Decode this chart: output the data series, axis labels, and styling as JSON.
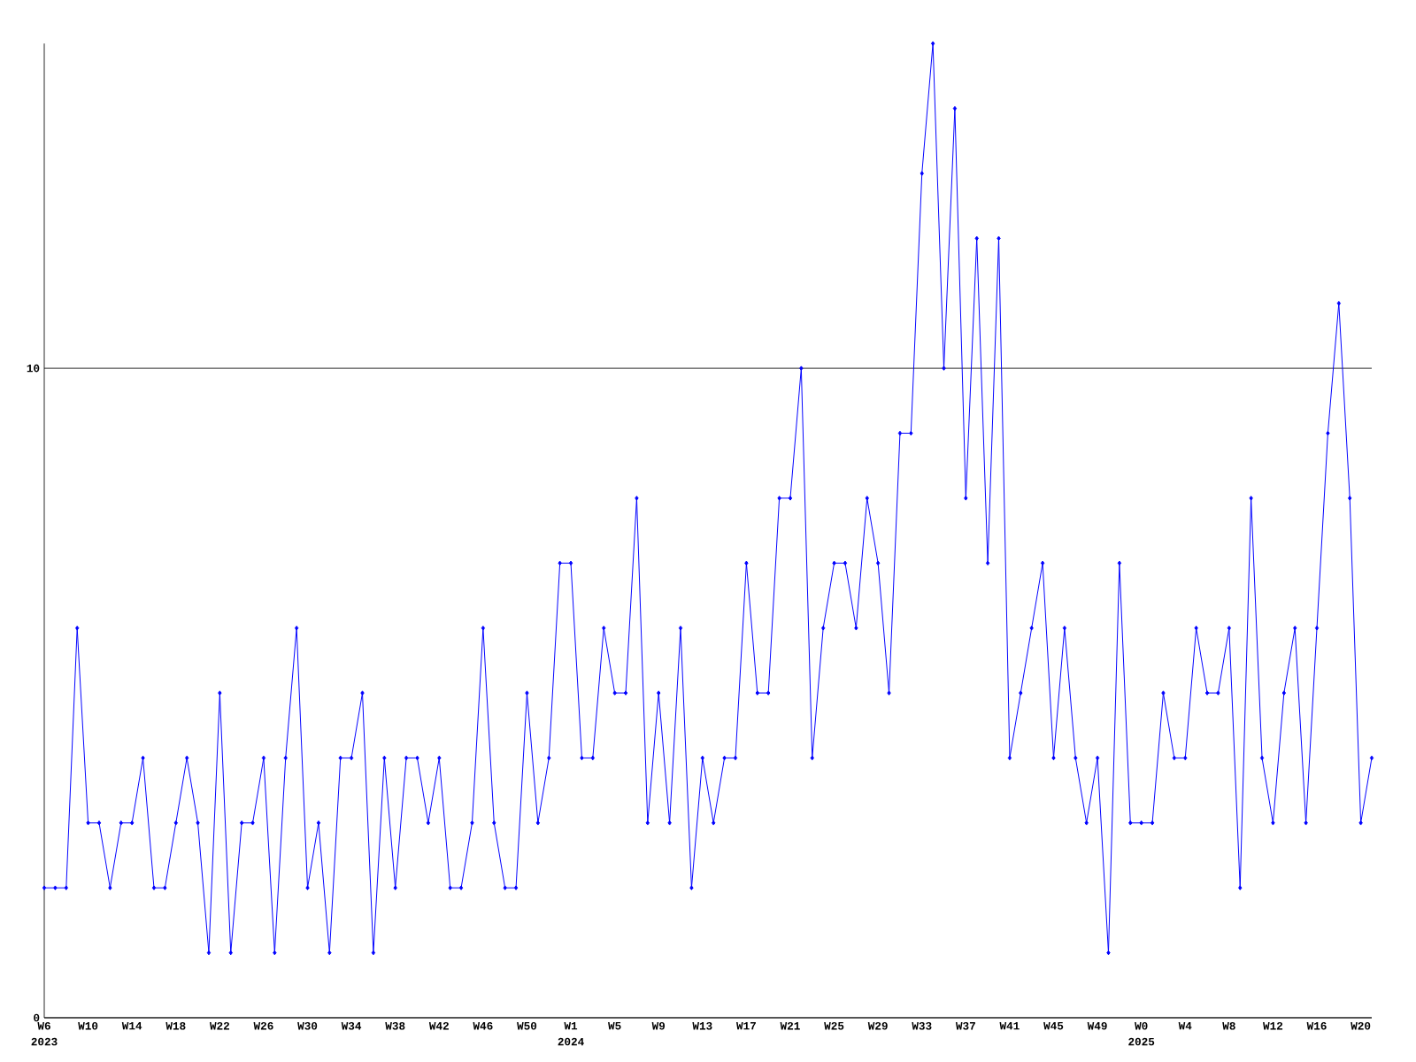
{
  "chart_data": {
    "type": "line",
    "categories": [
      "W6",
      null,
      null,
      null,
      "W10",
      null,
      null,
      null,
      "W14",
      null,
      null,
      null,
      "W18",
      null,
      null,
      null,
      "W22",
      null,
      null,
      null,
      "W26",
      null,
      null,
      null,
      "W30",
      null,
      null,
      null,
      "W34",
      null,
      null,
      null,
      "W38",
      null,
      null,
      null,
      "W42",
      null,
      null,
      null,
      "W46",
      null,
      null,
      null,
      "W50",
      null,
      null,
      null,
      "W1",
      null,
      null,
      null,
      "W5",
      null,
      null,
      null,
      "W9",
      null,
      null,
      null,
      "W13",
      null,
      null,
      null,
      "W17",
      null,
      null,
      null,
      "W21",
      null,
      null,
      null,
      "W25",
      null,
      null,
      null,
      "W29",
      null,
      null,
      null,
      "W33",
      null,
      null,
      null,
      "W37",
      null,
      null,
      null,
      "W41",
      null,
      null,
      null,
      "W45",
      null,
      null,
      null,
      "W49",
      null,
      null,
      null,
      "W0",
      null,
      null,
      null,
      "W4",
      null,
      null,
      null,
      "W8",
      null,
      null,
      null,
      "W12",
      null,
      null,
      null,
      "W16",
      null,
      null,
      null,
      "W20",
      null
    ],
    "values": [
      2,
      2,
      2,
      6,
      3,
      3,
      2,
      3,
      3,
      4,
      2,
      2,
      3,
      4,
      3,
      1,
      5,
      1,
      3,
      3,
      4,
      1,
      4,
      6,
      2,
      3,
      1,
      4,
      4,
      5,
      1,
      4,
      2,
      4,
      4,
      3,
      4,
      2,
      2,
      3,
      6,
      3,
      2,
      2,
      5,
      3,
      4,
      7,
      7,
      4,
      4,
      6,
      5,
      5,
      8,
      3,
      5,
      3,
      6,
      2,
      4,
      3,
      4,
      4,
      7,
      5,
      5,
      8,
      8,
      10,
      4,
      6,
      7,
      7,
      6,
      8,
      7,
      5,
      9,
      9,
      13,
      15,
      10,
      14,
      8,
      12,
      7,
      12,
      4,
      5,
      6,
      7,
      4,
      6,
      4,
      3,
      4,
      1,
      7,
      3,
      3,
      3,
      5,
      4,
      4,
      6,
      5,
      5,
      6,
      2,
      8,
      4,
      3,
      5,
      6,
      3,
      6,
      9,
      11,
      8,
      3,
      4
    ],
    "color": "#0000ff",
    "marker": "diamond",
    "ylim": [
      0,
      15
    ],
    "yticks": [
      0,
      10
    ],
    "grid": "y",
    "annotations": [
      "2023",
      "2024",
      "2025"
    ]
  }
}
